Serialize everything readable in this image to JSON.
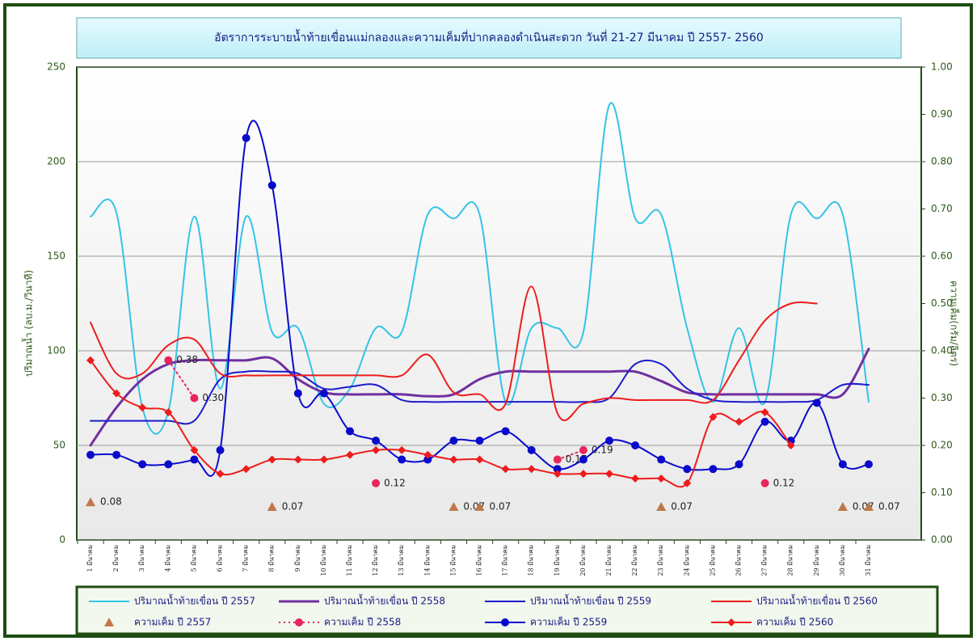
{
  "chart_data": {
    "type": "line",
    "title": "อัตราการระบายน้ำท้ายเขื่อนแม่กลองและความเค็มที่ปากคลองดำเนินสะดวก  วันที่  21-27 มีนาคม  ปี 2557- 2560",
    "y_label": "ปริมาณน้ำ (ลบ.ม./วินาที)",
    "y2_label": "ความเค็ม(กรัม/ลิตร)",
    "categories": [
      "1 มีนาคม",
      "2 มีนาคม",
      "3 มีนาคม",
      "4 มีนาคม",
      "5 มีนาคม",
      "6 มีนาคม",
      "7 มีนาคม",
      "8 มีนาคม",
      "9 มีนาคม",
      "10 มีนาคม",
      "11 มีนาคม",
      "12 มีนาคม",
      "13 มีนาคม",
      "14 มีนาคม",
      "15 มีนาคม",
      "16 มีนาคม",
      "17 มีนาคม",
      "18 มีนาคม",
      "19 มีนาคม",
      "20 มีนาคม",
      "21 มีนาคม",
      "22 มีนาคม",
      "23 มีนาคม",
      "24 มีนาคม",
      "25 มีนาคม",
      "26 มีนาคม",
      "27 มีนาคม",
      "28 มีนาคม",
      "29 มีนาคม",
      "30 มีนาคม",
      "31 มีนาคม"
    ],
    "ylim": [
      0,
      250
    ],
    "yticks": [
      0,
      50,
      100,
      150,
      200,
      250
    ],
    "y2lim": [
      0,
      1
    ],
    "y2ticks": [
      {
        "value": 0,
        "label": "0.00"
      },
      {
        "value": 0.1,
        "label": "0.10"
      },
      {
        "value": 0.2,
        "label": "0.20"
      },
      {
        "value": 0.3,
        "label": "0.30"
      },
      {
        "value": 0.4,
        "label": "0.40"
      },
      {
        "value": 0.5,
        "label": "0.50"
      },
      {
        "value": 0.6,
        "label": "0.60"
      },
      {
        "value": 0.7,
        "label": "0.70"
      },
      {
        "value": 0.8,
        "label": "0.80"
      },
      {
        "value": 0.9,
        "label": "0.90"
      },
      {
        "value": 1,
        "label": "1.00"
      }
    ],
    "grid": true,
    "series": [
      {
        "name": "ปริมาณน้ำท้ายเขื่อน ปี 2557",
        "color": "#33c3e8",
        "line_style": "solid",
        "marker": "none",
        "values": [
          171,
          173,
          70,
          68,
          171,
          80,
          171,
          110,
          112,
          72,
          80,
          112,
          110,
          172,
          170,
          172,
          73,
          112,
          112,
          110,
          230,
          170,
          172,
          112,
          73,
          112,
          73,
          172,
          170,
          172,
          73
        ]
      },
      {
        "name": "ความเค็ม ปี 2557",
        "color": "#c0784a",
        "axis": "y2",
        "line_style": "none",
        "marker": "triangle",
        "values": [
          0.08,
          null,
          null,
          null,
          null,
          null,
          null,
          0.07,
          null,
          null,
          null,
          null,
          null,
          null,
          0.07,
          0.07,
          null,
          null,
          null,
          null,
          null,
          null,
          0.07,
          null,
          null,
          null,
          null,
          null,
          null,
          0.07,
          0.07
        ]
      },
      {
        "name": "ปริมาณน้ำท้ายเขื่อน ปี 2558",
        "color": "#7030a0",
        "line_style": "thick",
        "marker": "none",
        "values": [
          50,
          70,
          85,
          93,
          95,
          95,
          95,
          96,
          85,
          78,
          77,
          77,
          77,
          76,
          77,
          85,
          89,
          89,
          89,
          89,
          89,
          89,
          84,
          78,
          77,
          77,
          77,
          77,
          77,
          77,
          101
        ]
      },
      {
        "name": "ความเค็ม ปี 2558",
        "color": "#e8265a",
        "axis": "y2",
        "line_style": "dotted",
        "marker": "circle",
        "values": [
          null,
          null,
          null,
          0.38,
          0.3,
          null,
          null,
          null,
          null,
          null,
          null,
          0.12,
          null,
          null,
          null,
          null,
          null,
          null,
          0.17,
          0.19,
          null,
          null,
          null,
          null,
          null,
          null,
          0.12,
          null,
          null,
          null,
          null
        ],
        "value_labels": [
          null,
          null,
          null,
          "0.38",
          "0.30",
          null,
          null,
          null,
          null,
          null,
          null,
          "0.12",
          null,
          null,
          null,
          null,
          null,
          null,
          "0.17",
          "0.19",
          null,
          null,
          null,
          null,
          null,
          null,
          "0.12",
          null,
          null,
          null,
          null
        ]
      },
      {
        "name": "ปริมาณน้ำท้ายเขื่อน ปี 2559",
        "color": "#1c1ccc",
        "line_style": "solid",
        "marker": "none",
        "values": [
          63,
          63,
          63,
          63,
          63,
          85,
          89,
          89,
          88,
          80,
          81,
          82,
          74,
          73,
          73,
          73,
          73,
          73,
          73,
          73,
          75,
          93,
          93,
          80,
          74,
          73,
          73,
          73,
          74,
          82,
          82
        ]
      },
      {
        "name": "ความเค็ม ปี 2559",
        "color": "#0a0acc",
        "axis": "y2",
        "line_style": "solid",
        "marker": "circle",
        "values": [
          0.18,
          0.18,
          0.16,
          0.16,
          0.17,
          0.19,
          0.85,
          0.75,
          0.31,
          0.31,
          0.23,
          0.21,
          0.17,
          0.17,
          0.21,
          0.21,
          0.23,
          0.19,
          0.15,
          0.17,
          0.21,
          0.2,
          0.17,
          0.15,
          0.15,
          0.16,
          0.25,
          0.21,
          0.29,
          0.16,
          0.16
        ]
      },
      {
        "name": "ปริมาณน้ำท้ายเขื่อน ปี 2560",
        "color": "#ee1c1c",
        "line_style": "solid",
        "marker": "none",
        "values": [
          115,
          88,
          88,
          103,
          106,
          88,
          87,
          87,
          87,
          87,
          87,
          87,
          87,
          98,
          78,
          77,
          72,
          134,
          67,
          72,
          75,
          74,
          74,
          74,
          74,
          95,
          116,
          125,
          125,
          null,
          null
        ]
      },
      {
        "name": "ความเค็ม ปี 2560",
        "color": "#ee1c1c",
        "axis": "y2",
        "line_style": "solid",
        "marker": "diamond",
        "values": [
          0.38,
          0.31,
          0.28,
          0.27,
          0.19,
          0.14,
          0.15,
          0.17,
          0.17,
          0.17,
          0.18,
          0.19,
          0.19,
          0.18,
          0.17,
          0.17,
          0.15,
          0.15,
          0.14,
          0.14,
          0.14,
          0.13,
          0.13,
          0.12,
          0.26,
          0.25,
          0.27,
          0.2,
          null,
          null,
          null
        ]
      }
    ]
  }
}
